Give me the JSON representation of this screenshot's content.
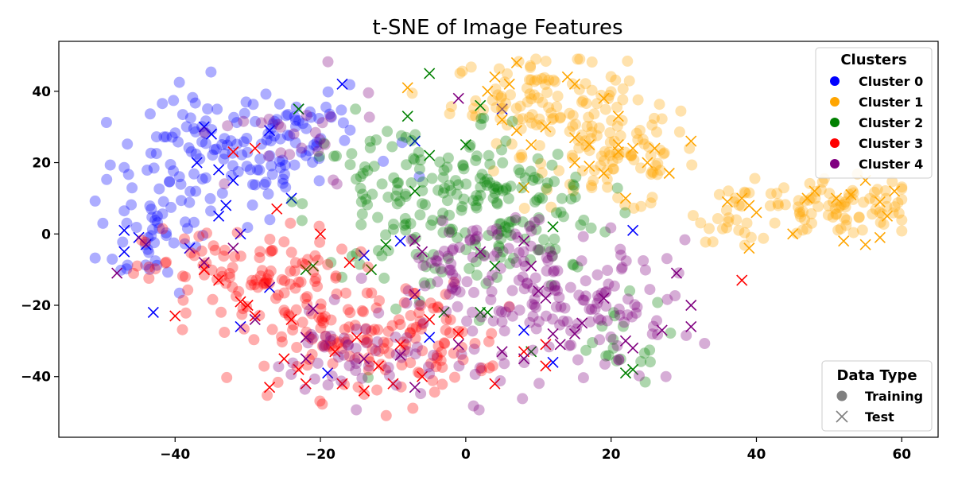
{
  "chart_data": {
    "type": "scatter",
    "title": "t-SNE of Image Features",
    "xlabel": "",
    "ylabel": "",
    "xlim": [
      -56,
      65
    ],
    "ylim": [
      -57,
      54
    ],
    "xticks": [
      -40,
      -20,
      0,
      20,
      40,
      60
    ],
    "yticks": [
      -40,
      -20,
      0,
      20,
      40
    ],
    "xtick_labels": [
      "−40",
      "−20",
      "0",
      "20",
      "40",
      "60"
    ],
    "ytick_labels": [
      "−40",
      "−20",
      "0",
      "20",
      "40"
    ],
    "grid": false,
    "legends": [
      {
        "title": "Clusters",
        "placement": "top-right",
        "entries": [
          {
            "label": "Cluster 0",
            "color": "#0000ff"
          },
          {
            "label": "Cluster 1",
            "color": "#ffa500"
          },
          {
            "label": "Cluster 2",
            "color": "#008000"
          },
          {
            "label": "Cluster 3",
            "color": "#ff0000"
          },
          {
            "label": "Cluster 4",
            "color": "#800080"
          }
        ]
      },
      {
        "title": "Data Type",
        "placement": "bottom-right",
        "entries": [
          {
            "label": "Training",
            "marker": "circle",
            "color": "#808080"
          },
          {
            "label": "Test",
            "marker": "x",
            "color": "#808080"
          }
        ]
      }
    ],
    "series": [
      {
        "name": "Cluster 0",
        "color": "#0000ff",
        "training_regions": [
          {
            "cx": -35,
            "cy": 20,
            "sx": 7,
            "sy": 9,
            "n": 95
          },
          {
            "cx": -28,
            "cy": 28,
            "sx": 6,
            "sy": 8,
            "n": 45
          },
          {
            "cx": -43,
            "cy": 0,
            "sx": 4,
            "sy": 8,
            "n": 40
          },
          {
            "cx": -20,
            "cy": 28,
            "sx": 5,
            "sy": 6,
            "n": 20
          }
        ],
        "test": [
          [
            -36,
            30
          ],
          [
            -35,
            28
          ],
          [
            -34,
            18
          ],
          [
            -37,
            20
          ],
          [
            -33,
            8
          ],
          [
            -32,
            15
          ],
          [
            -38,
            -4
          ],
          [
            -44,
            -3
          ],
          [
            -45,
            -1
          ],
          [
            -47,
            1
          ],
          [
            -47,
            -5
          ],
          [
            -27,
            29
          ],
          [
            -24,
            10
          ],
          [
            -23,
            35
          ],
          [
            -17,
            42
          ],
          [
            -31,
            0
          ],
          [
            -31,
            -26
          ],
          [
            -27,
            -15
          ],
          [
            -43,
            -22
          ],
          [
            -34,
            5
          ],
          [
            -19,
            -39
          ],
          [
            -9,
            -2
          ],
          [
            -7,
            26
          ],
          [
            -14,
            -6
          ],
          [
            -7,
            -17
          ],
          [
            -5,
            -29
          ],
          [
            5,
            35
          ],
          [
            8,
            -27
          ],
          [
            12,
            -36
          ],
          [
            23,
            1
          ]
        ]
      },
      {
        "name": "Cluster 1",
        "color": "#ffa500",
        "training_regions": [
          {
            "cx": 10,
            "cy": 38,
            "sx": 6,
            "sy": 6,
            "n": 95
          },
          {
            "cx": 20,
            "cy": 22,
            "sx": 6,
            "sy": 8,
            "n": 100
          },
          {
            "cx": 52,
            "cy": 7,
            "sx": 6,
            "sy": 4,
            "n": 85
          },
          {
            "cx": 38,
            "cy": 6,
            "sx": 3,
            "sy": 4,
            "n": 25
          }
        ],
        "test": [
          [
            7,
            48
          ],
          [
            -8,
            41
          ],
          [
            4,
            44
          ],
          [
            6,
            42
          ],
          [
            3,
            40
          ],
          [
            5,
            32
          ],
          [
            7,
            29
          ],
          [
            11,
            30
          ],
          [
            9,
            25
          ],
          [
            15,
            20
          ],
          [
            17,
            25
          ],
          [
            14,
            44
          ],
          [
            15,
            42
          ],
          [
            19,
            38
          ],
          [
            21,
            33
          ],
          [
            21,
            25
          ],
          [
            21,
            23
          ],
          [
            23,
            24
          ],
          [
            25,
            20
          ],
          [
            26,
            24
          ],
          [
            28,
            17
          ],
          [
            31,
            26
          ],
          [
            19,
            17
          ],
          [
            17,
            19
          ],
          [
            15,
            27
          ],
          [
            22,
            10
          ],
          [
            8,
            13
          ],
          [
            36,
            9
          ],
          [
            38,
            10
          ],
          [
            39,
            8
          ],
          [
            40,
            6
          ],
          [
            39,
            -4
          ],
          [
            45,
            0
          ],
          [
            47,
            10
          ],
          [
            48,
            12
          ],
          [
            51,
            10
          ],
          [
            53,
            11
          ],
          [
            55,
            15
          ],
          [
            57,
            9
          ],
          [
            58,
            5
          ],
          [
            59,
            12
          ],
          [
            52,
            -2
          ],
          [
            55,
            -3
          ],
          [
            57,
            -1
          ]
        ]
      },
      {
        "name": "Cluster 2",
        "color": "#008000",
        "training_regions": [
          {
            "cx": -10,
            "cy": 8,
            "sx": 6,
            "sy": 12,
            "n": 100
          },
          {
            "cx": 3,
            "cy": 10,
            "sx": 6,
            "sy": 12,
            "n": 90
          },
          {
            "cx": 10,
            "cy": 5,
            "sx": 5,
            "sy": 10,
            "n": 50
          },
          {
            "cx": 20,
            "cy": -30,
            "sx": 4,
            "sy": 6,
            "n": 20
          }
        ],
        "test": [
          [
            -23,
            35
          ],
          [
            -21,
            -9
          ],
          [
            -22,
            -10
          ],
          [
            -13,
            -10
          ],
          [
            -11,
            -3
          ],
          [
            -8,
            33
          ],
          [
            -7,
            12
          ],
          [
            -5,
            45
          ],
          [
            -5,
            22
          ],
          [
            -3,
            -22
          ],
          [
            0,
            25
          ],
          [
            2,
            -22
          ],
          [
            2,
            36
          ],
          [
            3,
            -22
          ],
          [
            4,
            -9
          ],
          [
            9,
            -33
          ],
          [
            12,
            2
          ],
          [
            22,
            -39
          ],
          [
            23,
            -38
          ]
        ]
      },
      {
        "name": "Cluster 3",
        "color": "#ff0000",
        "training_regions": [
          {
            "cx": -30,
            "cy": -12,
            "sx": 7,
            "sy": 7,
            "n": 110
          },
          {
            "cx": -15,
            "cy": -30,
            "sx": 8,
            "sy": 8,
            "n": 110
          },
          {
            "cx": -5,
            "cy": -30,
            "sx": 5,
            "sy": 6,
            "n": 40
          }
        ],
        "test": [
          [
            -36,
            -10
          ],
          [
            -34,
            -13
          ],
          [
            -31,
            -19
          ],
          [
            -30,
            -20
          ],
          [
            -29,
            -23
          ],
          [
            -40,
            -23
          ],
          [
            -32,
            23
          ],
          [
            -29,
            24
          ],
          [
            -26,
            7
          ],
          [
            -25,
            -35
          ],
          [
            -24,
            -24
          ],
          [
            -23,
            -38
          ],
          [
            -22,
            -42
          ],
          [
            -20,
            0
          ],
          [
            -18,
            -33
          ],
          [
            -17,
            -42
          ],
          [
            -16,
            -8
          ],
          [
            -15,
            -29
          ],
          [
            -14,
            -44
          ],
          [
            -10,
            -42
          ],
          [
            -9,
            -31
          ],
          [
            -6,
            -40
          ],
          [
            -5,
            -24
          ],
          [
            -1,
            -28
          ],
          [
            4,
            -42
          ],
          [
            8,
            -33
          ],
          [
            11,
            -31
          ],
          [
            11,
            -37
          ],
          [
            38,
            -13
          ],
          [
            -27,
            -43
          ],
          [
            -12,
            -37
          ]
        ]
      },
      {
        "name": "Cluster 4",
        "color": "#800080",
        "training_regions": [
          {
            "cx": 12,
            "cy": -20,
            "sx": 8,
            "sy": 10,
            "n": 110
          },
          {
            "cx": 0,
            "cy": -10,
            "sx": 6,
            "sy": 10,
            "n": 60
          },
          {
            "cx": -15,
            "cy": -35,
            "sx": 6,
            "sy": 6,
            "n": 50
          },
          {
            "cx": 22,
            "cy": -20,
            "sx": 5,
            "sy": 8,
            "n": 40
          },
          {
            "cx": -25,
            "cy": 25,
            "sx": 7,
            "sy": 8,
            "n": 25
          }
        ],
        "test": [
          [
            -48,
            -11
          ],
          [
            -36,
            -8
          ],
          [
            -32,
            -4
          ],
          [
            -29,
            -24
          ],
          [
            -22,
            -29
          ],
          [
            -22,
            -35
          ],
          [
            -21,
            -21
          ],
          [
            -14,
            -35
          ],
          [
            -9,
            -34
          ],
          [
            -7,
            -43
          ],
          [
            -6,
            -5
          ],
          [
            -1,
            -31
          ],
          [
            -1,
            38
          ],
          [
            2,
            -5
          ],
          [
            5,
            -33
          ],
          [
            8,
            -2
          ],
          [
            9,
            -9
          ],
          [
            10,
            -16
          ],
          [
            11,
            -18
          ],
          [
            12,
            -28
          ],
          [
            13,
            -31
          ],
          [
            15,
            -28
          ],
          [
            16,
            -25
          ],
          [
            19,
            -18
          ],
          [
            22,
            -30
          ],
          [
            23,
            -32
          ],
          [
            27,
            -27
          ],
          [
            29,
            -11
          ],
          [
            31,
            -20
          ],
          [
            31,
            -26
          ],
          [
            8,
            -35
          ],
          [
            -7,
            -2
          ]
        ]
      }
    ]
  }
}
